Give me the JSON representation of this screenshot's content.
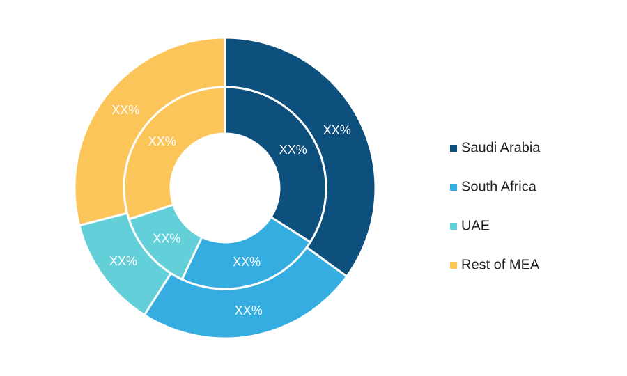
{
  "chart_data": {
    "type": "donut",
    "categories": [
      "Saudi Arabia",
      "South Africa",
      "UAE",
      "Rest of MEA"
    ],
    "colors": [
      "#0d4f7d",
      "#35ade1",
      "#63d0d9",
      "#fbc55a"
    ],
    "series": [
      {
        "values": [
          35,
          24,
          12,
          29
        ],
        "value_labels": [
          "XX%",
          "XX%",
          "XX%",
          "XX%"
        ]
      },
      {
        "values": [
          34,
          23,
          13,
          30
        ],
        "value_labels": [
          "XX%",
          "XX%",
          "XX%",
          "XX%"
        ]
      }
    ],
    "legend": "right"
  }
}
